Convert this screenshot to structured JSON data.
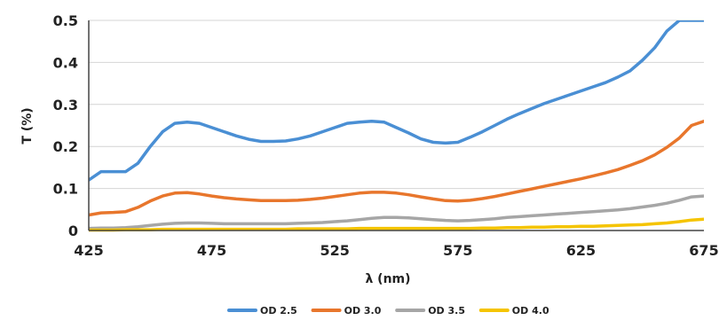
{
  "chart_data": {
    "type": "line",
    "title": "",
    "xlabel": "λ (nm)",
    "ylabel": "T (%)",
    "xlim": [
      425,
      675
    ],
    "ylim": [
      0,
      0.5
    ],
    "x_ticks": [
      425,
      475,
      525,
      575,
      625,
      675
    ],
    "y_ticks": [
      0,
      0.1,
      0.2,
      0.3,
      0.4,
      0.5
    ],
    "x_tick_labels": [
      "425",
      "475",
      "525",
      "575",
      "625",
      "675"
    ],
    "y_tick_labels": [
      "0",
      "0.1",
      "0.2",
      "0.3",
      "0.4",
      "0.5"
    ],
    "grid": "horizontal",
    "legend_position": "bottom",
    "x": [
      425,
      430,
      435,
      440,
      445,
      450,
      455,
      460,
      465,
      470,
      475,
      480,
      485,
      490,
      495,
      500,
      505,
      510,
      515,
      520,
      525,
      530,
      535,
      540,
      545,
      550,
      555,
      560,
      565,
      570,
      575,
      580,
      585,
      590,
      595,
      600,
      605,
      610,
      615,
      620,
      625,
      630,
      635,
      640,
      645,
      650,
      655,
      660,
      665,
      670,
      675
    ],
    "series": [
      {
        "name": "OD 2.5",
        "color": "#4a8fd4",
        "values": [
          0.12,
          0.14,
          0.14,
          0.14,
          0.16,
          0.2,
          0.235,
          0.255,
          0.258,
          0.255,
          0.245,
          0.235,
          0.225,
          0.217,
          0.212,
          0.212,
          0.213,
          0.218,
          0.225,
          0.235,
          0.245,
          0.255,
          0.258,
          0.26,
          0.258,
          0.245,
          0.232,
          0.218,
          0.21,
          0.208,
          0.21,
          0.222,
          0.235,
          0.25,
          0.265,
          0.278,
          0.29,
          0.302,
          0.312,
          0.322,
          0.332,
          0.342,
          0.352,
          0.365,
          0.38,
          0.405,
          0.435,
          0.475,
          0.5,
          0.5,
          0.5
        ]
      },
      {
        "name": "OD 3.0",
        "color": "#e8762c",
        "values": [
          0.037,
          0.042,
          0.043,
          0.045,
          0.055,
          0.07,
          0.082,
          0.089,
          0.09,
          0.087,
          0.082,
          0.078,
          0.075,
          0.073,
          0.071,
          0.071,
          0.071,
          0.072,
          0.074,
          0.077,
          0.081,
          0.085,
          0.089,
          0.091,
          0.091,
          0.089,
          0.085,
          0.08,
          0.075,
          0.071,
          0.07,
          0.072,
          0.076,
          0.081,
          0.087,
          0.093,
          0.099,
          0.105,
          0.111,
          0.117,
          0.123,
          0.13,
          0.137,
          0.145,
          0.155,
          0.166,
          0.18,
          0.198,
          0.22,
          0.25,
          0.26
        ]
      },
      {
        "name": "OD 3.5",
        "color": "#a6a6a6",
        "values": [
          0.005,
          0.006,
          0.006,
          0.007,
          0.009,
          0.012,
          0.015,
          0.017,
          0.018,
          0.018,
          0.017,
          0.016,
          0.016,
          0.016,
          0.016,
          0.016,
          0.016,
          0.017,
          0.018,
          0.019,
          0.021,
          0.023,
          0.026,
          0.029,
          0.031,
          0.031,
          0.03,
          0.028,
          0.026,
          0.024,
          0.023,
          0.024,
          0.026,
          0.028,
          0.031,
          0.033,
          0.035,
          0.037,
          0.039,
          0.041,
          0.043,
          0.045,
          0.047,
          0.049,
          0.052,
          0.056,
          0.06,
          0.065,
          0.072,
          0.08,
          0.082
        ]
      },
      {
        "name": "OD 4.0",
        "color": "#f5c400",
        "values": [
          0.001,
          0.001,
          0.001,
          0.002,
          0.002,
          0.002,
          0.003,
          0.003,
          0.003,
          0.003,
          0.003,
          0.003,
          0.003,
          0.003,
          0.003,
          0.003,
          0.003,
          0.004,
          0.004,
          0.004,
          0.004,
          0.004,
          0.005,
          0.005,
          0.005,
          0.005,
          0.005,
          0.005,
          0.005,
          0.005,
          0.005,
          0.005,
          0.006,
          0.006,
          0.007,
          0.007,
          0.008,
          0.008,
          0.009,
          0.009,
          0.01,
          0.01,
          0.011,
          0.012,
          0.013,
          0.014,
          0.016,
          0.018,
          0.021,
          0.025,
          0.027
        ]
      }
    ]
  }
}
